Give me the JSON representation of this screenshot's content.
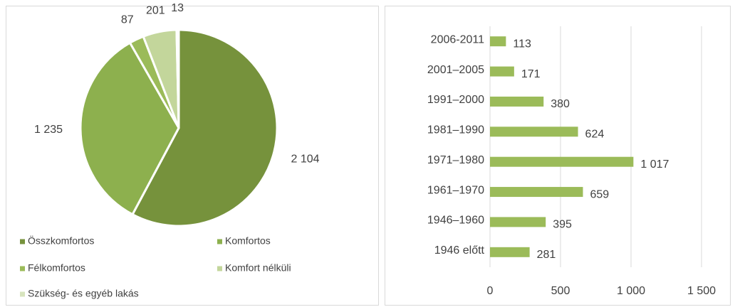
{
  "chart_data": [
    {
      "type": "pie",
      "categories": [
        "Összkomfortos",
        "Komfortos",
        "Félkomfortos",
        "Komfort nélküli",
        "Szükség- és egyéb lakás"
      ],
      "values": [
        2104,
        1235,
        87,
        201,
        13
      ],
      "value_labels": [
        "2 104",
        "1 235",
        "87",
        "201",
        "13"
      ],
      "colors": [
        "#76923c",
        "#8db04e",
        "#9bbb59",
        "#c3d69b",
        "#d7e4bd"
      ],
      "legend": "bottom"
    },
    {
      "type": "bar",
      "categories": [
        "2006-2011",
        "2001–2005",
        "1991–2000",
        "1981–1990",
        "1971–1980",
        "1961–1970",
        "1946–1960",
        "1946 előtt"
      ],
      "values": [
        113,
        171,
        380,
        624,
        1017,
        659,
        395,
        281
      ],
      "value_labels": [
        "113",
        "171",
        "380",
        "624",
        "1 017",
        "659",
        "395",
        "281"
      ],
      "color": "#9bbb59",
      "xlim": [
        0,
        1500
      ],
      "xticks": [
        0,
        500,
        {
          "value": 1000,
          "label": "1 000"
        },
        {
          "value": 1500,
          "label": "1 500"
        }
      ],
      "grid": true
    }
  ]
}
